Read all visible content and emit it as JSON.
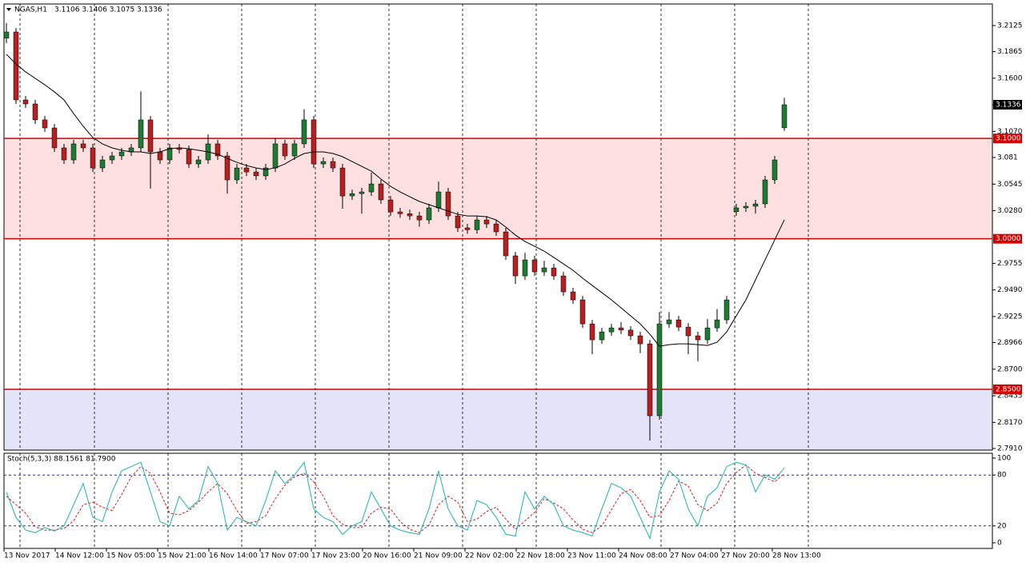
{
  "chart_data": {
    "type": "candlestick",
    "symbol": "NGAS,H1",
    "ohlc_text": "3.1106 3.1406 3.1075 3.1336",
    "up_color": "#1f7a35",
    "down_color": "#b22222",
    "wick_color": "#000000",
    "ylim": [
      2.7894,
      3.234
    ],
    "yticks": [
      3.2125,
      3.1865,
      {
        "value": 3.16,
        "label": "3.1600"
      },
      {
        "value": 3.107,
        "label": "3.1070"
      },
      3.081,
      3.0545,
      {
        "value": 3.028,
        "label": "3.0280"
      },
      2.9755,
      {
        "value": 2.949,
        "label": "2.9490"
      },
      2.9225,
      2.8966,
      {
        "value": 2.87,
        "label": "2.8700"
      },
      2.8435,
      {
        "value": 2.817,
        "label": "2.8170"
      },
      {
        "value": 2.791,
        "label": "2.7910"
      }
    ],
    "current_price": 3.1336,
    "levels": [
      {
        "value": 3.1,
        "label": "3.1000",
        "color": "#d40000"
      },
      {
        "value": 3.0,
        "label": "3.0000",
        "color": "#d40000"
      },
      {
        "value": 2.85,
        "label": "2.8500",
        "color": "#d40000"
      }
    ],
    "zones": [
      {
        "from": 3.0,
        "to": 3.1,
        "color": "#ffe0e0"
      },
      {
        "from": 2.7894,
        "to": 2.85,
        "color": "#e3e4f7"
      }
    ],
    "xlabels": [
      "13 Nov 2017",
      "14 Nov 12:00",
      "15 Nov 05:00",
      "15 Nov 21:00",
      "16 Nov 14:00",
      "17 Nov 07:00",
      "17 Nov 23:00",
      "20 Nov 16:00",
      "21 Nov 09:00",
      "22 Nov 02:00",
      "22 Nov 18:00",
      "23 Nov 11:00",
      "24 Nov 08:00",
      "27 Nov 04:00",
      "27 Nov 20:00",
      "28 Nov 13:00"
    ],
    "open": [
      3.2,
      3.2061,
      3.1384,
      3.1344,
      3.1185,
      3.1105,
      3.0906,
      3.0786,
      3.0946,
      3.0906,
      3.0706,
      3.0786,
      3.0826,
      3.0866,
      3.0906,
      3.1185,
      3.0866,
      3.0786,
      3.0906,
      3.089,
      3.0746,
      3.0786,
      3.0946,
      3.0826,
      3.0587,
      3.0706,
      3.0666,
      3.0627,
      3.0706,
      3.0946,
      3.0826,
      3.0946,
      3.1185,
      3.0746,
      3.077,
      3.0706,
      3.0427,
      3.045,
      3.0467,
      3.0547,
      3.0388,
      3.0268,
      3.025,
      3.0228,
      3.0188,
      3.0308,
      3.0467,
      3.0228,
      3.0109,
      3.009,
      3.0188,
      3.0148,
      3.0069,
      2.983,
      2.963,
      2.979,
      2.967,
      2.971,
      2.963,
      2.9471,
      2.9391,
      2.9152,
      2.8993,
      2.9072,
      2.9112,
      2.909,
      2.9033,
      2.8953,
      2.8236,
      2.9152,
      2.9192,
      2.912,
      2.9033,
      2.8993,
      2.9112,
      2.9192,
      3.027,
      3.0308,
      3.0324,
      3.0348,
      3.0587,
      3.1106
    ],
    "high": [
      3.215,
      3.2101,
      3.1424,
      3.1384,
      3.1225,
      3.1145,
      3.0946,
      3.0986,
      3.0986,
      3.0946,
      3.0826,
      3.0866,
      3.0906,
      3.0946,
      3.147,
      3.1225,
      3.0906,
      3.0946,
      3.0946,
      3.093,
      3.0826,
      3.104,
      3.0986,
      3.0866,
      3.0746,
      3.0746,
      3.0706,
      3.0746,
      3.1,
      3.0986,
      3.0986,
      3.129,
      3.1225,
      3.081,
      3.081,
      3.0746,
      3.049,
      3.0507,
      3.066,
      3.0587,
      3.0428,
      3.0308,
      3.029,
      3.0268,
      3.0348,
      3.057,
      3.0507,
      3.0268,
      3.0149,
      3.0228,
      3.0228,
      3.0188,
      3.0109,
      2.987,
      2.986,
      2.983,
      2.978,
      2.975,
      2.967,
      2.9511,
      2.9431,
      2.9192,
      2.9112,
      2.9152,
      2.917,
      2.913,
      2.9073,
      2.8993,
      2.927,
      2.927,
      2.9232,
      2.916,
      2.9073,
      2.92,
      2.93,
      2.9431,
      3.0348,
      3.0364,
      3.0388,
      3.0627,
      3.0826,
      3.1406
    ],
    "low": [
      3.195,
      3.1344,
      3.1304,
      3.1145,
      3.1065,
      3.0866,
      3.0746,
      3.0746,
      3.0866,
      3.0666,
      3.0666,
      3.0746,
      3.0786,
      3.0826,
      3.0866,
      3.05,
      3.0746,
      3.0746,
      3.085,
      3.0706,
      3.0706,
      3.0746,
      3.0786,
      3.045,
      3.0547,
      3.0626,
      3.0587,
      3.0587,
      3.0666,
      3.0786,
      3.0786,
      3.0906,
      3.0706,
      3.0706,
      3.0666,
      3.03,
      3.0387,
      3.025,
      3.0427,
      3.0348,
      3.0228,
      3.021,
      3.0188,
      3.012,
      3.0148,
      3.0268,
      3.0188,
      3.0069,
      3.005,
      3.005,
      3.0108,
      3.0029,
      2.979,
      2.955,
      2.959,
      2.963,
      2.963,
      2.959,
      2.9431,
      2.9351,
      2.9112,
      2.885,
      2.8953,
      2.9032,
      2.905,
      2.8993,
      2.886,
      2.799,
      2.8196,
      2.9112,
      2.908,
      2.885,
      2.878,
      2.8953,
      2.9072,
      2.9152,
      3.023,
      3.0268,
      3.025,
      3.0308,
      3.0547,
      3.1075
    ],
    "close": [
      3.2061,
      3.1384,
      3.1344,
      3.1185,
      3.1105,
      3.0906,
      3.0786,
      3.0946,
      3.0906,
      3.0706,
      3.0786,
      3.0826,
      3.0866,
      3.0906,
      3.1185,
      3.0866,
      3.0786,
      3.0906,
      3.089,
      3.0746,
      3.0786,
      3.0946,
      3.0826,
      3.0587,
      3.0706,
      3.0666,
      3.0627,
      3.0706,
      3.0946,
      3.0826,
      3.0946,
      3.1185,
      3.0746,
      3.077,
      3.0706,
      3.0427,
      3.045,
      3.0467,
      3.0547,
      3.0388,
      3.0268,
      3.025,
      3.0228,
      3.0188,
      3.0308,
      3.0467,
      3.0228,
      3.0109,
      3.009,
      3.0188,
      3.0148,
      3.0069,
      2.983,
      2.963,
      2.979,
      2.967,
      2.971,
      2.963,
      2.9471,
      2.9391,
      2.9152,
      2.8993,
      2.9072,
      2.9112,
      2.909,
      2.9033,
      2.8953,
      2.8236,
      2.9152,
      2.9192,
      2.912,
      2.9033,
      2.8993,
      2.9112,
      2.9192,
      2.9391,
      3.0308,
      3.0324,
      3.0348,
      3.0587,
      3.0786,
      3.1336
    ],
    "ma_color": "#000000",
    "ma": [
      3.1838,
      3.1742,
      3.1663,
      3.1599,
      3.1535,
      3.1464,
      3.1384,
      3.1248,
      3.1121,
      3.1009,
      3.0946,
      3.0906,
      3.0882,
      3.0866,
      3.0866,
      3.085,
      3.0866,
      3.0898,
      3.0906,
      3.0898,
      3.0882,
      3.0866,
      3.0842,
      3.0802,
      3.0762,
      3.073,
      3.0706,
      3.069,
      3.0706,
      3.0746,
      3.0802,
      3.085,
      3.0866,
      3.0866,
      3.085,
      3.0818,
      3.077,
      3.0722,
      3.0674,
      3.0595,
      3.0523,
      3.0467,
      3.0419,
      3.0372,
      3.034,
      3.0308,
      3.0276,
      3.0244,
      3.0228,
      3.0228,
      3.022,
      3.0188,
      3.0117,
      3.0037,
      2.9973,
      2.9925,
      2.9877,
      2.9814,
      2.975,
      2.9686,
      2.9607,
      2.9535,
      2.9463,
      2.9391,
      2.9312,
      2.9232,
      2.9152,
      2.9049,
      2.8929,
      2.8945,
      2.8953,
      2.8953,
      2.8945,
      2.8937,
      2.8969,
      2.9072,
      2.9232,
      2.9391,
      2.9591,
      2.979,
      2.9989,
      3.0188
    ],
    "stoch": {
      "title": "Stoch(5,3,3) 88.1561 81.7900",
      "ylim": [
        0,
        100
      ],
      "yticks": [
        0,
        20,
        80,
        100
      ],
      "levels": [
        20,
        80
      ],
      "level_color": "#2a2aa0",
      "main": {
        "color": "#20b2aa",
        "values": [
          60,
          30,
          15,
          12,
          18,
          14,
          20,
          45,
          70,
          30,
          25,
          60,
          85,
          90,
          95,
          60,
          25,
          20,
          55,
          40,
          50,
          90,
          70,
          15,
          30,
          25,
          20,
          50,
          85,
          70,
          80,
          95,
          40,
          30,
          25,
          10,
          20,
          25,
          60,
          40,
          20,
          15,
          12,
          10,
          40,
          85,
          40,
          20,
          15,
          50,
          45,
          30,
          10,
          8,
          60,
          40,
          55,
          45,
          20,
          15,
          12,
          8,
          40,
          70,
          65,
          55,
          30,
          5,
          60,
          85,
          75,
          40,
          20,
          55,
          65,
          90,
          95,
          92,
          60,
          80,
          75,
          88.1561
        ]
      },
      "signal": {
        "color": "#d02020",
        "values": [
          55,
          45,
          35,
          19,
          15,
          15,
          17,
          26,
          45,
          48,
          42,
          38,
          57,
          78,
          90,
          82,
          60,
          35,
          33,
          38,
          48,
          60,
          70,
          58,
          38,
          23,
          25,
          32,
          52,
          68,
          78,
          82,
          72,
          55,
          32,
          22,
          18,
          18,
          35,
          42,
          40,
          25,
          16,
          12,
          21,
          45,
          55,
          48,
          25,
          28,
          37,
          42,
          28,
          16,
          26,
          36,
          52,
          47,
          40,
          27,
          16,
          12,
          20,
          39,
          58,
          63,
          50,
          30,
          32,
          50,
          73,
          67,
          45,
          38,
          47,
          70,
          83,
          92,
          82,
          77,
          72,
          81.79
        ]
      }
    }
  }
}
